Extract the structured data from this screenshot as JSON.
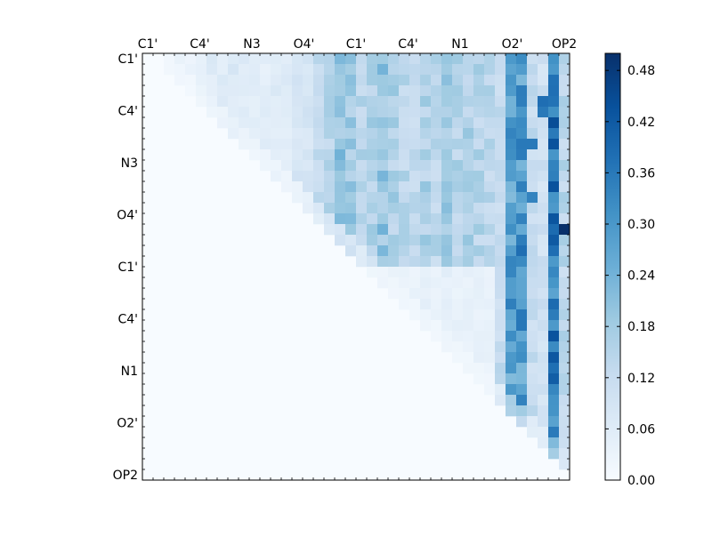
{
  "chart_data": {
    "type": "heatmap",
    "title": "",
    "xlabel": "",
    "ylabel": "",
    "x_tick_labels": [
      "C1'",
      "C4'",
      "N3",
      "O4'",
      "C1'",
      "C4'",
      "N1",
      "O2'",
      "OP2"
    ],
    "y_tick_labels": [
      "C1'",
      "C4'",
      "N3",
      "O4'",
      "C1'",
      "C4'",
      "N1",
      "O2'",
      "OP2"
    ],
    "grid_size": 40,
    "upper_triangle_only": true,
    "colormap": "Blues",
    "colormap_stops": [
      "#f7fbff",
      "#deebf7",
      "#c6dbef",
      "#9ecae1",
      "#6baed6",
      "#4292c6",
      "#2171b5",
      "#08519c",
      "#08306b"
    ],
    "colorbar": {
      "min": 0.0,
      "max": 0.5,
      "tick_labels": [
        "0.00",
        "0.06",
        "0.12",
        "0.18",
        "0.24",
        "0.30",
        "0.36",
        "0.42",
        "0.48"
      ]
    },
    "column_profile": [
      0,
      0,
      0.04,
      0.04,
      0.03,
      0.05,
      0.06,
      0.06,
      0.07,
      0.06,
      0.05,
      0.05,
      0.06,
      0.06,
      0.08,
      0.09,
      0.12,
      0.14,
      0.2,
      0.18,
      0.15,
      0.16,
      0.2,
      0.16,
      0.14,
      0.13,
      0.16,
      0.14,
      0.18,
      0.15,
      0.16,
      0.15,
      0.14,
      0.12,
      0.28,
      0.3,
      0.12,
      0.1,
      0.36,
      0.14
    ],
    "special_cells": [
      {
        "row": 16,
        "col": 39,
        "value": 0.5
      },
      {
        "row": 17,
        "col": 38,
        "value": 0.42
      },
      {
        "row": 18,
        "col": 38,
        "value": 0.38
      },
      {
        "row": 18,
        "col": 35,
        "value": 0.38
      },
      {
        "row": 4,
        "col": 37,
        "value": 0.38
      },
      {
        "row": 5,
        "col": 37,
        "value": 0.36
      },
      {
        "row": 8,
        "col": 36,
        "value": 0.36
      },
      {
        "row": 13,
        "col": 36,
        "value": 0.34
      }
    ]
  }
}
